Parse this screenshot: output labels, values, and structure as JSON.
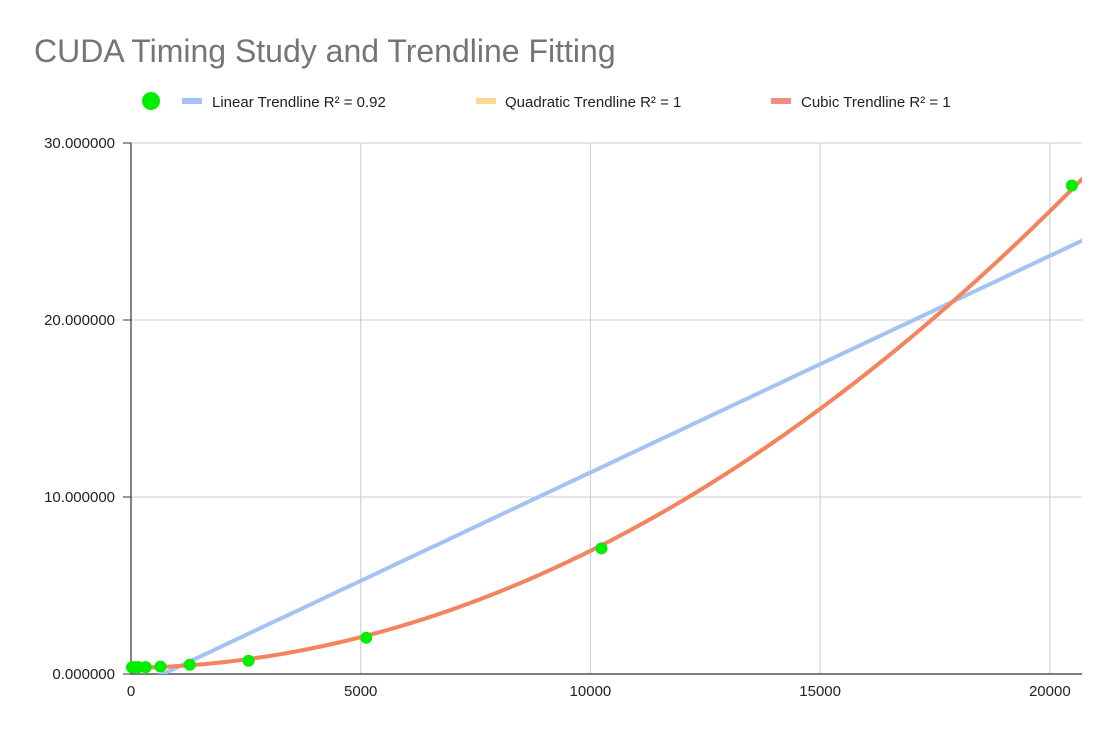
{
  "chart_data": {
    "type": "scatter",
    "title": "CUDA Timing Study and Trendline Fitting",
    "xlabel": "",
    "ylabel": "",
    "xlim": [
      0,
      20700
    ],
    "ylim": [
      0,
      30
    ],
    "grid": true,
    "legend_placement": "top",
    "x_ticks": [
      {
        "value": 0,
        "label": "0"
      },
      {
        "value": 5000,
        "label": "5000"
      },
      {
        "value": 10000,
        "label": "10000"
      },
      {
        "value": 15000,
        "label": "15000"
      },
      {
        "value": 20000,
        "label": "20000"
      }
    ],
    "y_ticks": [
      {
        "value": 0,
        "label": "0.000000"
      },
      {
        "value": 10,
        "label": "10.000000"
      },
      {
        "value": 20,
        "label": "20.000000"
      },
      {
        "value": 30,
        "label": "30.000000"
      }
    ],
    "series": [
      {
        "kind": "points",
        "color": "#00ee00",
        "x": [
          20,
          40,
          80,
          160,
          320,
          640,
          1280,
          2560,
          5120,
          10240,
          20480
        ],
        "y": [
          0.38,
          0.38,
          0.38,
          0.39,
          0.39,
          0.42,
          0.52,
          0.75,
          2.05,
          7.1,
          27.6
        ]
      },
      {
        "kind": "trendline",
        "name": "Linear Trendline R² = 0.92",
        "color": "#a4c2f4",
        "fit": "linear",
        "coefficients": [
          -0.855,
          0.001224
        ]
      },
      {
        "kind": "trendline",
        "name": "Quadratic Trendline R² = 1",
        "color": "#fdd898",
        "fit": "quadratic",
        "coefficients": [
          0.35,
          3.18e-05,
          6.29e-08
        ]
      },
      {
        "kind": "trendline",
        "name": "Cubic Trendline R² = 1",
        "color": "#f28b82",
        "fit": "cubic",
        "coefficients": [
          0.35,
          3.18e-05,
          6.29e-08,
          0
        ]
      }
    ]
  }
}
